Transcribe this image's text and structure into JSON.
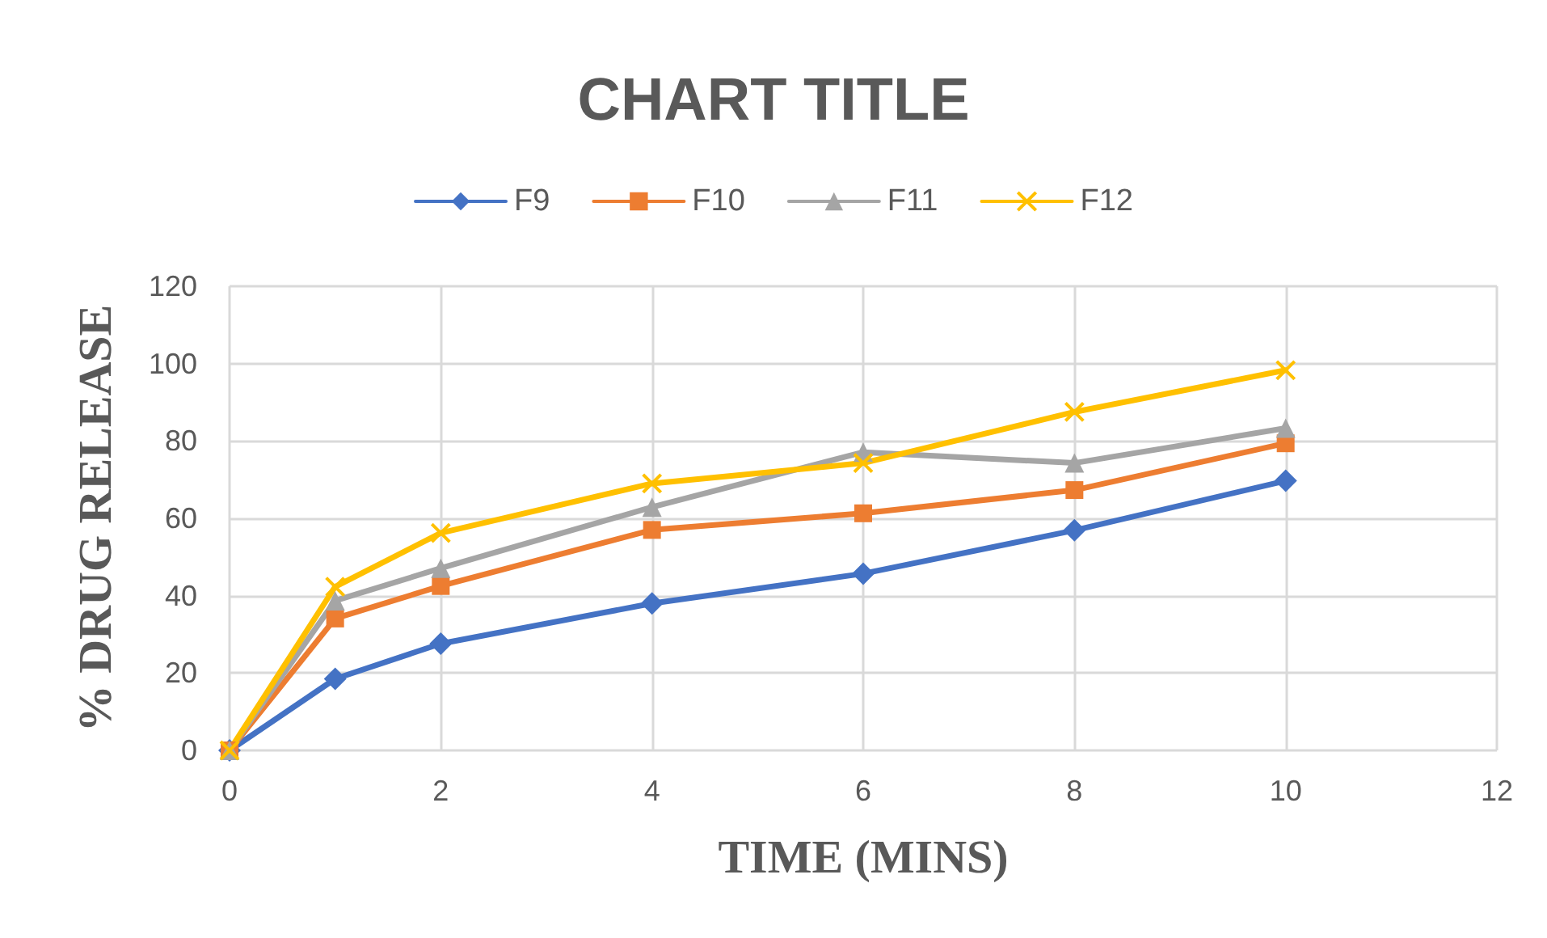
{
  "chart_data": {
    "type": "line",
    "title": "CHART TITLE",
    "xlabel": "TIME (MINS)",
    "ylabel": "% DRUG RELEASE",
    "x": [
      0,
      1,
      2,
      4,
      6,
      8,
      10
    ],
    "series": [
      {
        "name": "F9",
        "color": "#4472c4",
        "marker": "diamond",
        "values": [
          0,
          18.5,
          27.6,
          38.0,
          45.7,
          56.9,
          69.7
        ]
      },
      {
        "name": "F10",
        "color": "#ed7d31",
        "marker": "square",
        "values": [
          0,
          34.1,
          42.5,
          57.0,
          61.3,
          67.3,
          79.4
        ]
      },
      {
        "name": "F11",
        "color": "#a5a5a5",
        "marker": "triangle",
        "values": [
          0,
          38.7,
          47.1,
          62.9,
          77.1,
          74.3,
          83.3
        ]
      },
      {
        "name": "F12",
        "color": "#ffc000",
        "marker": "cross",
        "values": [
          0,
          42.3,
          56.2,
          69.0,
          74.3,
          87.5,
          98.3
        ]
      }
    ],
    "xlim": [
      0,
      12
    ],
    "xticks": [
      0,
      2,
      4,
      6,
      8,
      10,
      12
    ],
    "ylim": [
      0,
      120
    ],
    "yticks": [
      0,
      20,
      40,
      60,
      80,
      100,
      120
    ],
    "grid": true,
    "legend": "top",
    "line_style": "solid"
  }
}
